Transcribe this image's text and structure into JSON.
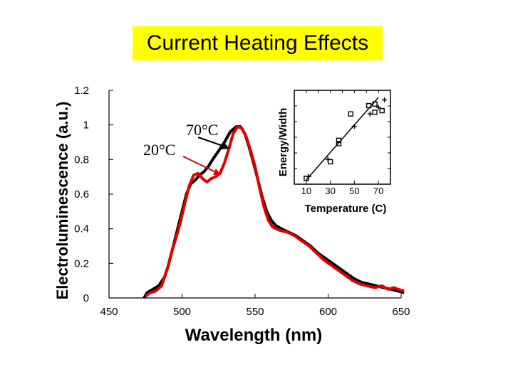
{
  "title": "Current Heating Effects",
  "colors": {
    "title_bg": "#ffff00",
    "series_70C": "#000000",
    "series_20C": "#e00000",
    "axis": "#000000"
  },
  "chart_data": [
    {
      "type": "line",
      "xlabel": "Wavelength (nm)",
      "ylabel": "Electroluminescence (a.u.)",
      "xlim": [
        450,
        650
      ],
      "ylim": [
        0,
        1.2
      ],
      "xticks": [
        "450",
        "500",
        "550",
        "600",
        "650"
      ],
      "yticks": [
        "0",
        "0.2",
        "0.4",
        "0.6",
        "0.8",
        "1",
        "1.2"
      ],
      "annotations": [
        {
          "text": "70°C",
          "series": "70C"
        },
        {
          "text": "20°C",
          "series": "20C"
        }
      ],
      "series": [
        {
          "name": "70C",
          "color": "#000000",
          "points": [
            [
              474,
              0
            ],
            [
              476,
              0.03
            ],
            [
              480,
              0.05
            ],
            [
              484,
              0.07
            ],
            [
              488,
              0.12
            ],
            [
              491,
              0.2
            ],
            [
              494,
              0.3
            ],
            [
              497,
              0.4
            ],
            [
              500,
              0.5
            ],
            [
              503,
              0.6
            ],
            [
              506,
              0.66
            ],
            [
              509,
              0.68
            ],
            [
              512,
              0.71
            ],
            [
              515,
              0.73
            ],
            [
              518,
              0.76
            ],
            [
              521,
              0.8
            ],
            [
              525,
              0.85
            ],
            [
              529,
              0.9
            ],
            [
              533,
              0.96
            ],
            [
              537,
              0.99
            ],
            [
              540,
              0.99
            ],
            [
              543,
              0.95
            ],
            [
              546,
              0.87
            ],
            [
              549,
              0.78
            ],
            [
              552,
              0.68
            ],
            [
              555,
              0.58
            ],
            [
              558,
              0.5
            ],
            [
              561,
              0.45
            ],
            [
              564,
              0.42
            ],
            [
              568,
              0.4
            ],
            [
              573,
              0.38
            ],
            [
              578,
              0.36
            ],
            [
              583,
              0.33
            ],
            [
              588,
              0.3
            ],
            [
              593,
              0.26
            ],
            [
              598,
              0.23
            ],
            [
              603,
              0.2
            ],
            [
              608,
              0.17
            ],
            [
              613,
              0.14
            ],
            [
              618,
              0.11
            ],
            [
              623,
              0.09
            ],
            [
              628,
              0.08
            ],
            [
              633,
              0.07
            ],
            [
              638,
              0.06
            ],
            [
              643,
              0.05
            ],
            [
              648,
              0.04
            ],
            [
              652,
              0.03
            ]
          ]
        },
        {
          "name": "20C",
          "color": "#e00000",
          "points": [
            [
              475,
              0.01
            ],
            [
              478,
              0.03
            ],
            [
              482,
              0.04
            ],
            [
              486,
              0.07
            ],
            [
              490,
              0.17
            ],
            [
              493,
              0.27
            ],
            [
              496,
              0.35
            ],
            [
              499,
              0.44
            ],
            [
              502,
              0.55
            ],
            [
              505,
              0.65
            ],
            [
              508,
              0.71
            ],
            [
              511,
              0.72
            ],
            [
              514,
              0.69
            ],
            [
              517,
              0.67
            ],
            [
              520,
              0.69
            ],
            [
              523,
              0.7
            ],
            [
              526,
              0.72
            ],
            [
              529,
              0.78
            ],
            [
              532,
              0.86
            ],
            [
              535,
              0.95
            ],
            [
              538,
              0.99
            ],
            [
              541,
              0.98
            ],
            [
              544,
              0.93
            ],
            [
              547,
              0.85
            ],
            [
              550,
              0.76
            ],
            [
              553,
              0.64
            ],
            [
              556,
              0.53
            ],
            [
              559,
              0.45
            ],
            [
              562,
              0.41
            ],
            [
              567,
              0.39
            ],
            [
              572,
              0.38
            ],
            [
              577,
              0.36
            ],
            [
              582,
              0.33
            ],
            [
              587,
              0.3
            ],
            [
              592,
              0.26
            ],
            [
              597,
              0.22
            ],
            [
              602,
              0.19
            ],
            [
              607,
              0.16
            ],
            [
              612,
              0.13
            ],
            [
              617,
              0.1
            ],
            [
              622,
              0.08
            ],
            [
              627,
              0.07
            ],
            [
              632,
              0.06
            ],
            [
              637,
              0.07
            ],
            [
              641,
              0.05
            ],
            [
              645,
              0.06
            ],
            [
              648,
              0.05
            ],
            [
              652,
              0.04
            ]
          ]
        }
      ]
    },
    {
      "type": "scatter",
      "xlabel": "Temperature (C)",
      "ylabel": "Energy/Width",
      "xlim": [
        0,
        80
      ],
      "xticks": [
        "10",
        "30",
        "50",
        "70"
      ],
      "fit_line": [
        [
          10,
          0
        ],
        [
          70,
          1
        ]
      ],
      "series": [
        {
          "name": "squares",
          "marker": "square",
          "points": [
            [
              10,
              0.02
            ],
            [
              30,
              0.22
            ],
            [
              37,
              0.44
            ],
            [
              37,
              0.48
            ],
            [
              47,
              0.8
            ],
            [
              62,
              0.9
            ],
            [
              67,
              0.92
            ],
            [
              67,
              0.82
            ],
            [
              73,
              0.84
            ]
          ]
        },
        {
          "name": "crosses",
          "marker": "plus",
          "points": [
            [
              12,
              0.04
            ],
            [
              28,
              0.25
            ],
            [
              50,
              0.65
            ],
            [
              63,
              0.8
            ],
            [
              70,
              0.88
            ],
            [
              75,
              0.97
            ]
          ]
        }
      ]
    }
  ]
}
